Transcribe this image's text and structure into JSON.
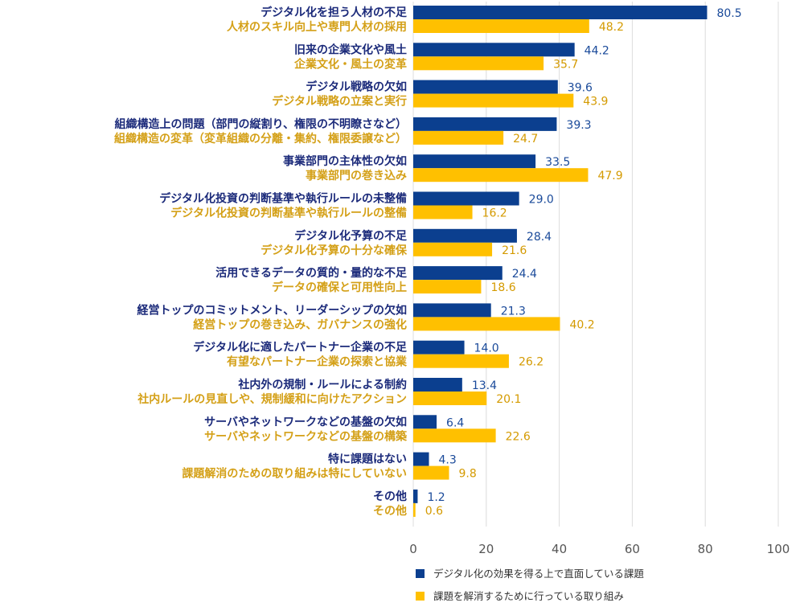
{
  "chart_data": {
    "type": "bar",
    "orientation": "horizontal",
    "title": "",
    "xlabel": "",
    "ylabel": "",
    "xlim": [
      0,
      100
    ],
    "xticks": [
      0,
      20,
      40,
      60,
      80,
      100
    ],
    "grid": true,
    "legend_placement": "bottom",
    "colors": {
      "challenges": "#0b3f8f",
      "actions": "#ffc000"
    },
    "series": [
      {
        "name": "デジタル化の効果を得る上で直面している課題",
        "key": "challenges",
        "values": [
          80.5,
          44.2,
          39.6,
          39.3,
          33.5,
          29.0,
          28.4,
          24.4,
          21.3,
          14.0,
          13.4,
          6.4,
          4.3,
          1.2
        ]
      },
      {
        "name": "課題を解消するために行っている取り組み",
        "key": "actions",
        "values": [
          48.2,
          35.7,
          43.9,
          24.7,
          47.9,
          16.2,
          21.6,
          18.6,
          40.2,
          26.2,
          20.1,
          22.6,
          9.8,
          0.6
        ]
      }
    ],
    "categories": [
      {
        "challenge": "デジタル化を担う人材の不足",
        "action": "人材のスキル向上や専門人材の採用"
      },
      {
        "challenge": "旧来の企業文化や風土",
        "action": "企業文化・風土の変革"
      },
      {
        "challenge": "デジタル戦略の欠如",
        "action": "デジタル戦略の立案と実行"
      },
      {
        "challenge": "組織構造上の問題（部門の縦割り、権限の不明瞭さなど）",
        "action": "組織構造の変革（変革組織の分離・集約、権限委譲など）"
      },
      {
        "challenge": "事業部門の主体性の欠如",
        "action": "事業部門の巻き込み"
      },
      {
        "challenge": "デジタル化投資の判断基準や執行ルールの未整備",
        "action": "デジタル化投資の判断基準や執行ルールの整備"
      },
      {
        "challenge": "デジタル化予算の不足",
        "action": "デジタル化予算の十分な確保"
      },
      {
        "challenge": "活用できるデータの質的・量的な不足",
        "action": "データの確保と可用性向上"
      },
      {
        "challenge": "経営トップのコミットメント、リーダーシップの欠如",
        "action": "経営トップの巻き込み、ガバナンスの強化"
      },
      {
        "challenge": "デジタル化に適したパートナー企業の不足",
        "action": "有望なパートナー企業の探索と協業"
      },
      {
        "challenge": "社内外の規制・ルールによる制約",
        "action": "社内ルールの見直しや、規制緩和に向けたアクション"
      },
      {
        "challenge": "サーバやネットワークなどの基盤の欠如",
        "action": "サーバやネットワークなどの基盤の構築"
      },
      {
        "challenge": "特に課題はない",
        "action": "課題解消のための取り組みは特にしていない"
      },
      {
        "challenge": "その他",
        "action": "その他"
      }
    ]
  }
}
